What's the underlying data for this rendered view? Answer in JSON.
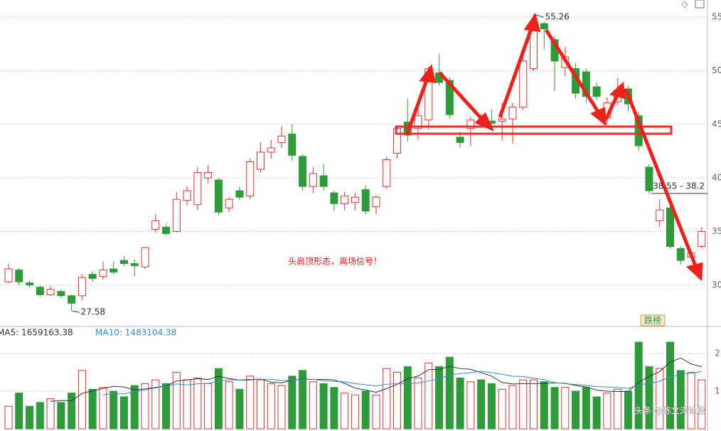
{
  "chart_data": [
    {
      "type": "candlestick",
      "open": [
        30.3,
        31.4,
        30.2,
        29.8,
        29.1,
        29.4,
        29.0,
        29.0,
        31.0,
        30.8,
        31.5,
        32.3,
        32.0,
        31.7,
        35.2,
        35.4,
        35.0,
        37.9,
        37.5,
        40.0,
        39.8,
        37.2,
        38.8,
        38.3,
        40.8,
        42.4,
        43.3,
        44.1,
        42.0,
        39.2,
        40.2,
        38.6,
        37.6,
        37.7,
        38.9,
        37.3,
        39.2,
        42.3,
        45.2,
        44.6,
        45.4,
        49.8,
        49.1,
        43.8,
        44.6,
        45.4,
        45.3,
        45.3,
        45.5,
        46.6,
        50.2,
        54.4,
        52.9,
        50.3,
        50.2,
        49.9,
        48.5,
        45.6,
        47.1,
        48.3,
        45.8,
        41.0,
        36.0,
        37.2,
        33.4,
        32.6,
        33.6
      ],
      "close": [
        31.5,
        30.3,
        30.0,
        29.1,
        29.6,
        29.0,
        28.3,
        30.7,
        30.6,
        31.4,
        31.2,
        32.0,
        31.8,
        33.5,
        36.0,
        34.8,
        38.0,
        38.8,
        40.5,
        40.5,
        36.8,
        38.0,
        38.2,
        41.5,
        42.4,
        42.8,
        43.9,
        42.1,
        39.2,
        40.4,
        39.2,
        37.6,
        38.3,
        38.2,
        36.9,
        38.2,
        41.7,
        44.6,
        44.0,
        45.8,
        50.2,
        48.9,
        45.9,
        43.3,
        45.4,
        45.0,
        45.1,
        45.5,
        46.6,
        50.9,
        53.9,
        53.9,
        50.9,
        51.3,
        47.9,
        47.6,
        47.6,
        47.0,
        48.2,
        46.9,
        43.0,
        38.8,
        37.0,
        33.6,
        32.3,
        33.0,
        35.0
      ],
      "high": [
        32.0,
        31.6,
        30.4,
        30.0,
        29.9,
        29.6,
        29.1,
        31.0,
        31.3,
        32.2,
        32.2,
        32.7,
        32.4,
        33.6,
        36.6,
        35.6,
        38.7,
        39.2,
        41.0,
        41.2,
        40.0,
        38.2,
        39.2,
        41.8,
        43.3,
        43.5,
        44.8,
        45.0,
        42.2,
        41.0,
        41.3,
        38.8,
        38.7,
        38.6,
        39.3,
        38.4,
        42.0,
        44.9,
        47.4,
        46.5,
        50.4,
        51.6,
        49.4,
        44.3,
        45.7,
        46.0,
        46.4,
        47.0,
        47.0,
        51.8,
        55.26,
        54.6,
        53.2,
        52.2,
        50.7,
        50.2,
        48.9,
        47.5,
        49.3,
        48.6,
        46.2,
        41.3,
        38.0,
        37.5,
        33.6,
        33.2,
        35.4
      ],
      "low": [
        30.2,
        30.0,
        29.8,
        28.9,
        29.0,
        28.8,
        27.58,
        28.6,
        30.3,
        30.5,
        31.0,
        31.8,
        30.8,
        31.5,
        34.9,
        34.6,
        34.9,
        37.4,
        37.0,
        39.5,
        36.5,
        36.8,
        37.9,
        38.0,
        40.5,
        41.8,
        42.8,
        41.6,
        38.8,
        38.6,
        38.8,
        36.9,
        37.0,
        37.0,
        36.6,
        36.6,
        39.0,
        41.8,
        43.4,
        43.6,
        44.5,
        48.6,
        45.5,
        42.8,
        43.0,
        44.8,
        44.5,
        43.5,
        43.2,
        46.3,
        50.0,
        52.0,
        48.1,
        49.5,
        47.4,
        47.0,
        47.3,
        45.0,
        46.8,
        46.2,
        42.5,
        38.5,
        35.4,
        33.4,
        31.9,
        32.4,
        33.4
      ],
      "up_color": "#e8312f",
      "down_color": "#2e9b3a",
      "ylim": [
        26.2,
        56.6
      ],
      "yticks": [
        30,
        35,
        40,
        45,
        50,
        55
      ],
      "grid": true,
      "annotations": {
        "high": "55.26",
        "low": "27.58",
        "level": "38.55 - 38.2",
        "headline": "头肩顶形态，离场信号！",
        "badge": "跌榜"
      }
    },
    {
      "type": "volume_bar",
      "values": [
        0.6,
        0.95,
        0.6,
        0.7,
        0.8,
        0.7,
        0.95,
        1.55,
        1.05,
        1.1,
        1.0,
        0.85,
        1.15,
        1.2,
        1.3,
        1.2,
        1.5,
        1.3,
        1.35,
        1.2,
        1.6,
        1.25,
        1.05,
        1.4,
        1.3,
        1.2,
        1.15,
        1.4,
        1.55,
        1.25,
        1.2,
        1.1,
        0.95,
        0.9,
        1.0,
        0.9,
        1.6,
        1.5,
        1.65,
        1.35,
        1.75,
        1.65,
        1.9,
        1.35,
        1.25,
        1.3,
        1.2,
        1.05,
        1.15,
        1.3,
        1.3,
        1.25,
        1.1,
        1.1,
        1.0,
        1.1,
        0.85,
        0.95,
        1.05,
        1.0,
        2.3,
        1.65,
        1.6,
        2.3,
        1.55,
        1.5,
        1.3
      ],
      "ylim": [
        0,
        2.66
      ],
      "yticks": [
        1,
        2
      ],
      "grid": true,
      "legend": {
        "ma5": "MA5: 1659163.38",
        "ma10": "MA10: 1483104.38"
      },
      "ma5_color": "#333333",
      "ma10_color": "#2a8fd6",
      "watermark": "头条 @陈文泽论股"
    }
  ]
}
